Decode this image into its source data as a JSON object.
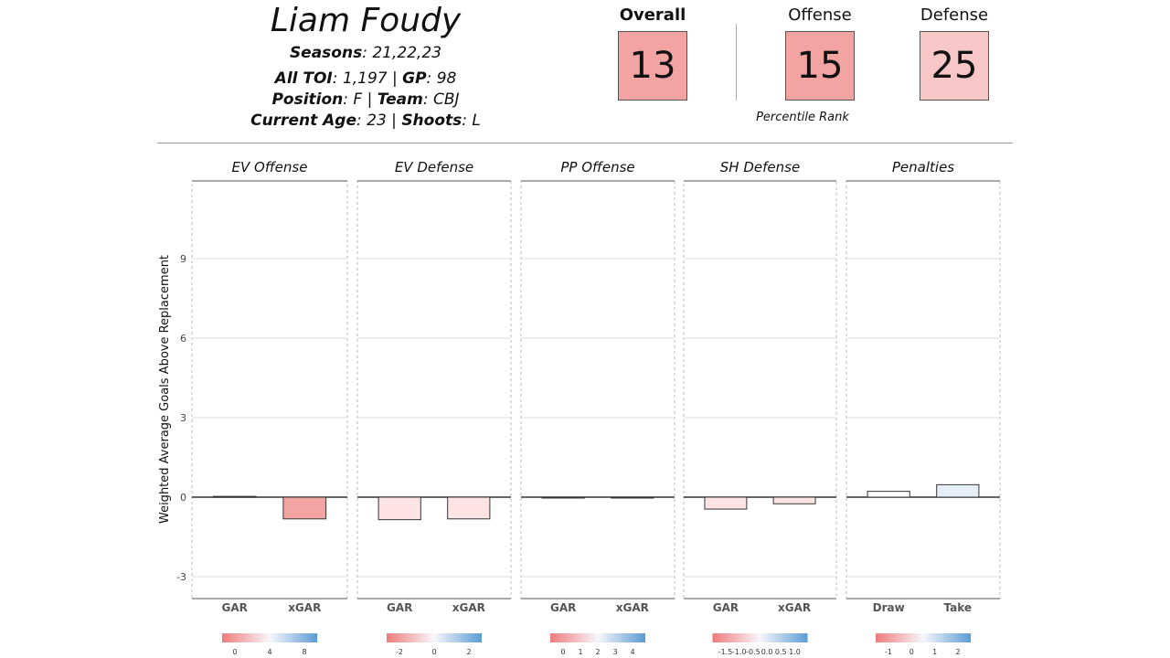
{
  "player": {
    "name": "Liam Foudy",
    "seasons_label": "Seasons",
    "seasons": "21,22,23",
    "toi_label": "All TOI",
    "toi": "1,197",
    "gp_label": "GP",
    "gp": "98",
    "position_label": "Position",
    "position": "F",
    "team_label": "Team",
    "team": "CBJ",
    "age_label": "Current Age",
    "age": "23",
    "shoots_label": "Shoots",
    "shoots": "L"
  },
  "ranks": {
    "overall_label": "Overall",
    "overall": "13",
    "offense_label": "Offense",
    "offense": "15",
    "defense_label": "Defense",
    "defense": "25",
    "percentile_label": "Percentile Rank",
    "colors": {
      "overall": "#f4a3a3",
      "offense": "#f4a3a3",
      "defense": "#f7c6c6"
    }
  },
  "chart_data": {
    "type": "bar",
    "ylabel": "Weighted Average Goals Above Replacement",
    "ylim": [
      -3.8,
      11.5
    ],
    "yticks": [
      -3,
      0,
      3,
      6,
      9
    ],
    "grid": true,
    "panels": [
      {
        "title": "EV Offense",
        "categories": [
          "GAR",
          "xGAR"
        ],
        "values": [
          0.03,
          -0.82
        ],
        "colors": [
          "#ffffff",
          "#f4a3a3"
        ],
        "legend_ticks": [
          "0",
          "4",
          "8"
        ]
      },
      {
        "title": "EV Defense",
        "categories": [
          "GAR",
          "xGAR"
        ],
        "values": [
          -0.85,
          -0.82
        ],
        "colors": [
          "#fde3e3",
          "#fde3e3"
        ],
        "legend_ticks": [
          "-2",
          "0",
          "2"
        ]
      },
      {
        "title": "PP Offense",
        "categories": [
          "GAR",
          "xGAR"
        ],
        "values": [
          0.0,
          0.0
        ],
        "colors": [
          "#ffffff",
          "#ffffff"
        ],
        "legend_ticks": [
          "0",
          "1",
          "2",
          "3",
          "4"
        ]
      },
      {
        "title": "SH Defense",
        "categories": [
          "GAR",
          "xGAR"
        ],
        "values": [
          -0.45,
          -0.25
        ],
        "colors": [
          "#fde3e3",
          "#fde3e3"
        ],
        "legend_ticks": [
          "-1.5",
          "-1.0",
          "-0.5",
          "0.0",
          "0.5",
          "1.0"
        ]
      },
      {
        "title": "Penalties",
        "categories": [
          "Draw",
          "Take"
        ],
        "values": [
          0.22,
          0.47
        ],
        "colors": [
          "#ffffff",
          "#e6eef8"
        ],
        "legend_ticks": [
          "-1",
          "0",
          "1",
          "2"
        ]
      }
    ]
  }
}
